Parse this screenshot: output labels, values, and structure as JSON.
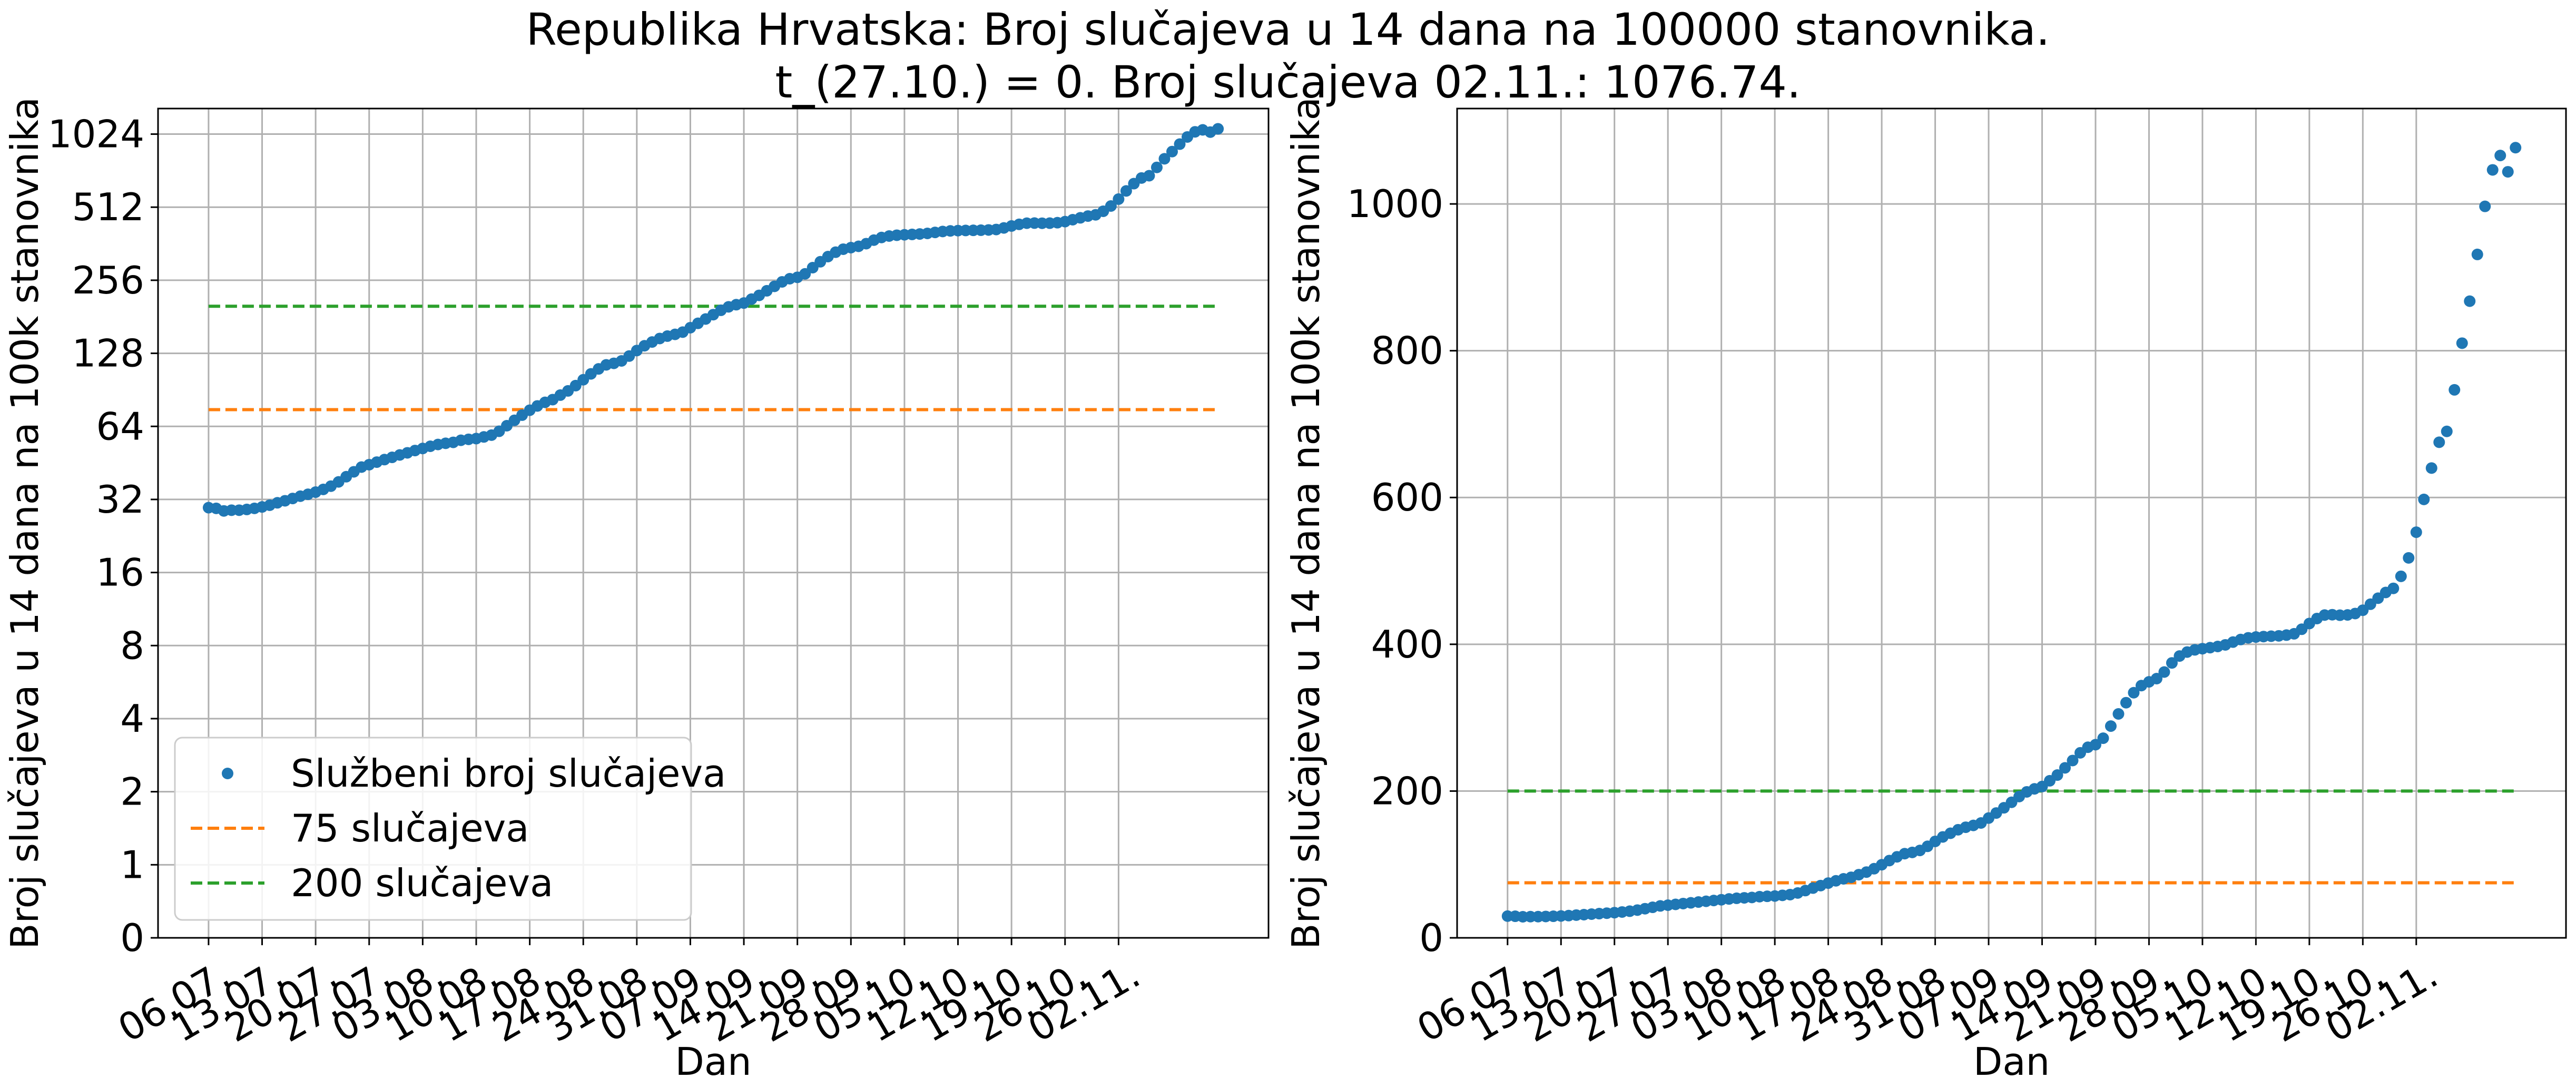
{
  "figure": {
    "title_line1": "Republika Hrvatska: Broj slučajeva u 14 dana na 100000 stanovnika.",
    "title_line2": "t_(27.10.) = 0. Broj slučajeva 02.11.: 1076.74."
  },
  "colors": {
    "points": "#1f77b4",
    "threshold_75": "#ff7f0e",
    "threshold_200": "#2ca02c",
    "grid": "#b0b0b0"
  },
  "chart_data": [
    {
      "type": "scatter",
      "yscale": "log2",
      "xlabel": "Dan",
      "ylabel": "Broj slučajeva u 14 dana na 100k stanovnika",
      "x_tick_labels": [
        "06.07.",
        "13.07.",
        "20.07.",
        "27.07.",
        "03.08.",
        "10.08.",
        "17.08.",
        "24.08.",
        "31.08.",
        "07.09.",
        "14.09.",
        "21.09.",
        "28.09.",
        "05.10.",
        "12.10.",
        "19.10.",
        "26.10.",
        "02.11."
      ],
      "y_ticks": [
        0,
        1,
        2,
        4,
        8,
        16,
        32,
        64,
        128,
        256,
        512,
        1024
      ],
      "y_tick_labels": [
        "0",
        "1",
        "2",
        "4",
        "8",
        "16",
        "32",
        "64",
        "128",
        "256",
        "512",
        "1024"
      ],
      "grid": true,
      "legend_position": "lower-left",
      "legend": [
        "Službeni broj slučajeva",
        "75 slučajeva",
        "200 slučajeva"
      ],
      "thresholds": [
        75,
        200
      ]
    },
    {
      "type": "scatter",
      "yscale": "linear",
      "xlabel": "Dan",
      "ylabel": "Broj slučajeva u 14 dana na 100k stanovnika",
      "x_tick_labels": [
        "06.07.",
        "13.07.",
        "20.07.",
        "27.07.",
        "03.08.",
        "10.08.",
        "17.08.",
        "24.08.",
        "31.08.",
        "07.09.",
        "14.09.",
        "21.09.",
        "28.09.",
        "05.10.",
        "12.10.",
        "19.10.",
        "26.10.",
        "02.11."
      ],
      "y_ticks": [
        0,
        200,
        400,
        600,
        800,
        1000
      ],
      "y_tick_labels": [
        "0",
        "200",
        "400",
        "600",
        "800",
        "1000"
      ],
      "ylim": [
        0,
        1130
      ],
      "grid": true,
      "thresholds": [
        75,
        200
      ]
    }
  ],
  "series": {
    "name": "Službeni broj slučajeva",
    "x_start": "06.07.",
    "values": [
      29.6,
      29.4,
      28.7,
      28.9,
      28.9,
      29.1,
      29.4,
      29.8,
      30.3,
      31.0,
      31.6,
      32.3,
      33.0,
      33.6,
      34.3,
      35.2,
      36.3,
      37.8,
      39.7,
      41.6,
      43.5,
      44.5,
      45.6,
      46.7,
      47.7,
      48.8,
      49.8,
      50.9,
      51.9,
      53.0,
      53.9,
      54.5,
      55.0,
      56.1,
      56.6,
      57.0,
      57.9,
      58.9,
      61.1,
      64.4,
      67.8,
      71.2,
      74.6,
      77.7,
      80.4,
      82.5,
      86.1,
      89.6,
      94.2,
      99.6,
      105.3,
      110.4,
      114.7,
      116.4,
      119.1,
      124.7,
      131.4,
      137.5,
      142.5,
      147.3,
      150.7,
      153.2,
      156.5,
      163.2,
      170.1,
      177.2,
      184.7,
      192.5,
      198.9,
      203.0,
      206.2,
      214.0,
      221.8,
      231.6,
      241.6,
      252.1,
      259.7,
      263.2,
      272.0,
      288.5,
      305.1,
      320.4,
      334.0,
      343.7,
      348.8,
      353.2,
      362.2,
      374.6,
      384.0,
      389.4,
      392.4,
      394.0,
      395.4,
      397.0,
      399.2,
      403.0,
      406.5,
      408.8,
      409.9,
      410.5,
      411.0,
      411.5,
      412.5,
      414.3,
      420.5,
      428.3,
      435.1,
      439.8,
      440.3,
      439.6,
      440.0,
      441.9,
      446.4,
      454.6,
      462.8,
      470.6,
      476.2,
      492.6,
      517.7,
      552.7,
      597.4,
      640.1,
      675.3,
      690.1,
      746.7,
      810.3,
      867.5,
      931.2,
      996.7,
      1046.4,
      1066.0,
      1043.8,
      1076.7
    ]
  },
  "thresholds": [
    {
      "label": "75 slučajeva",
      "value": 75
    },
    {
      "label": "200 slučajeva",
      "value": 200
    }
  ]
}
